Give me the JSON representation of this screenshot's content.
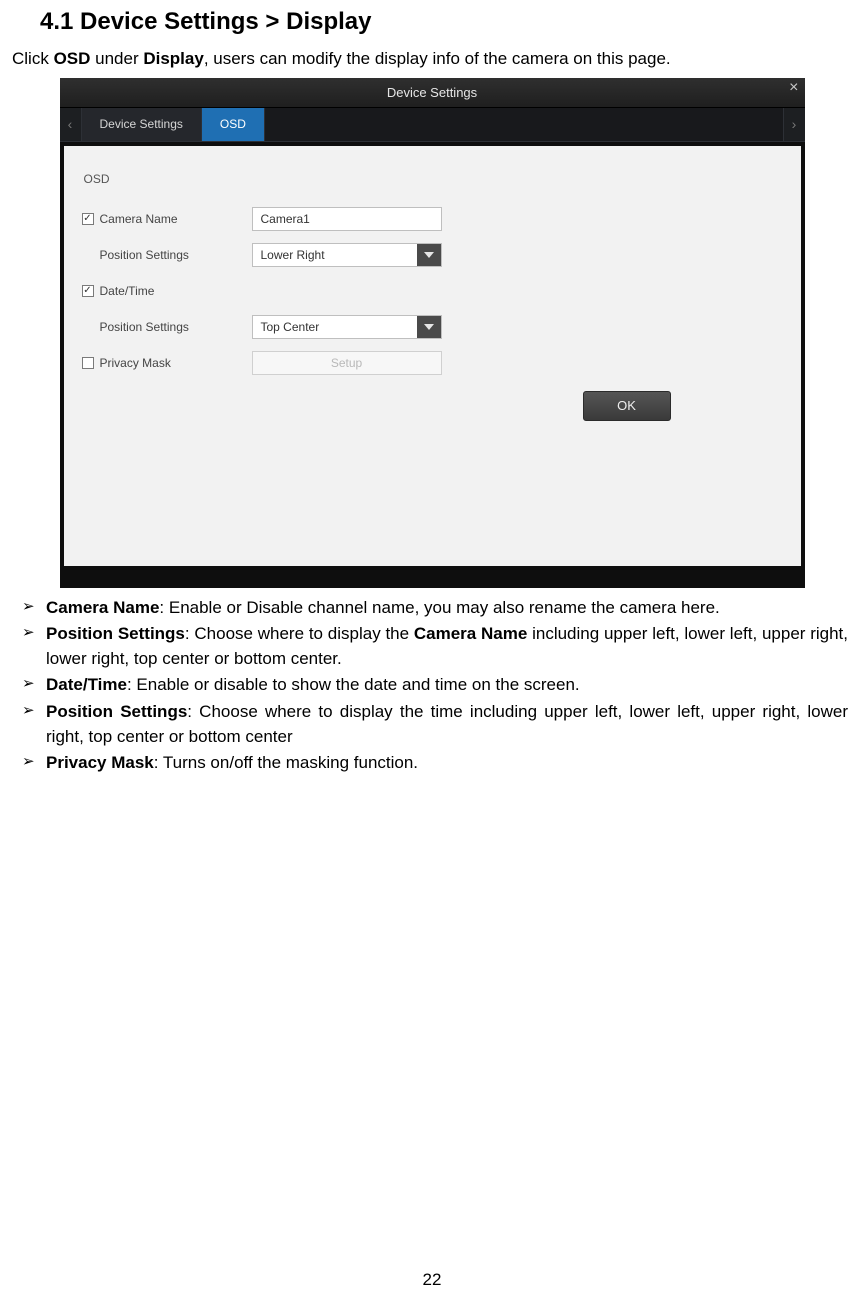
{
  "heading": "4.1 Device Settings > Display",
  "intro": {
    "pre": "Click ",
    "osd": "OSD",
    "mid": " under ",
    "display": "Display",
    "post": ", users can modify the display info of the camera on this page."
  },
  "screenshot": {
    "title": "Device Settings",
    "close": "×",
    "arrow_left": "‹",
    "arrow_right": "›",
    "tab1": "Device Settings",
    "tab2": "OSD",
    "section": "OSD",
    "rows": {
      "camera_name_label": "Camera Name",
      "camera_name_value": "Camera1",
      "pos1_label": "Position Settings",
      "pos1_value": "Lower Right",
      "datetime_label": "Date/Time",
      "pos2_label": "Position Settings",
      "pos2_value": "Top Center",
      "privacy_label": "Privacy Mask",
      "setup": "Setup"
    },
    "ok": "OK",
    "colors": {
      "dialog_bg": "#0e0e0e",
      "body_bg": "#f2f2f2",
      "tab_active": "#1f6fb3",
      "ok_bg": "#444444"
    }
  },
  "bullets": {
    "b1_title": "Camera Name",
    "b1_rest": ": Enable or Disable channel name, you may also rename the camera here.",
    "b2_title": "Position Settings",
    "b2_mid": ": Choose where to display the ",
    "b2_bold": "Camera Name",
    "b2_rest": " including upper left, lower left, upper right, lower right, top center or bottom center.",
    "b3_title": "Date/Time",
    "b3_rest": ": Enable or disable to show the date and time on the screen.",
    "b4_title": "Position Settings",
    "b4_rest": ": Choose where to display the time including upper left, lower left, upper right, lower right, top center or bottom center",
    "b5_title": "Privacy Mask",
    "b5_rest": ": Turns on/off the masking function."
  },
  "page_number": "22"
}
